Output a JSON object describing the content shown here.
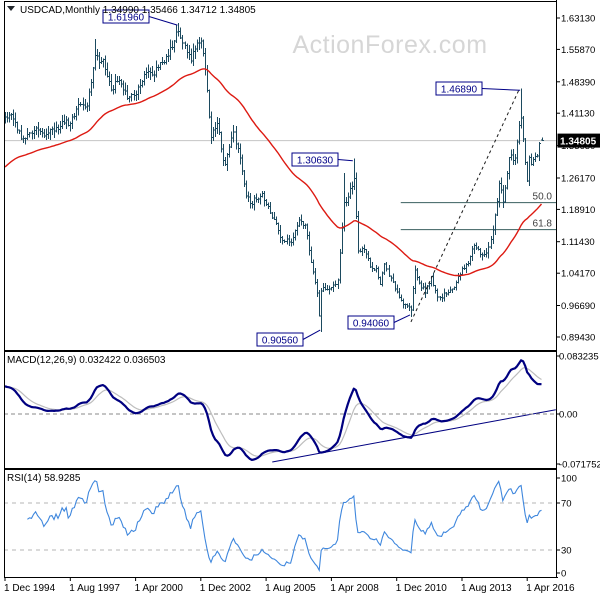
{
  "header": {
    "display": "USDCAD,Monthly 1.34990 1.35466 1.34712 1.34805",
    "symbol_period": "USDCAD,Monthly",
    "open": "1.34990",
    "high": "1.35466",
    "low": "1.34712",
    "close": "1.34805"
  },
  "watermark": "ActionForex.com",
  "panes": {
    "macd": {
      "label": "MACD(12,26,9) 0.032422 0.036503",
      "axis_ticks": [
        {
          "label": "0.083235",
          "value": 0.083235
        },
        {
          "label": "0.00",
          "value": 0
        },
        {
          "label": "-0.071752",
          "value": -0.071752
        }
      ]
    },
    "rsi": {
      "label": "RSI(14) 58.9285",
      "axis_ticks": [
        {
          "label": "100",
          "value": 100
        },
        {
          "label": "70",
          "value": 70
        },
        {
          "label": "30",
          "value": 30
        },
        {
          "label": "0",
          "value": 0
        }
      ],
      "levels": [
        70,
        30
      ]
    }
  },
  "colors": {
    "background": "#ffffff",
    "bars": "#1c4a5f",
    "ma_line": "#dd1a12",
    "watermark_gray": "#d6d6d6",
    "annotation_navy": "#000087",
    "macd_line": "#000080",
    "macd_signal": "#bdbdbd",
    "rsi_line": "#3f87dd",
    "fib_line": "#3a5f5f",
    "axis_text": "#000000",
    "current_price_bg": "#000000",
    "current_price_text": "#ffffff",
    "current_price_line": "#c4c4c4",
    "trendline_black": "#1a1a1a",
    "frame": "#000000",
    "rsi_level_line": "#b5b5b5",
    "macd_zero_line": "#8a8a8a"
  },
  "chart_data": {
    "type": "candlestick",
    "symbol": "USDCAD",
    "timeframe": "Monthly",
    "title": "USDCAD Monthly with 55-month EMA, Fibonacci retracement, MACD and RSI",
    "x_axis": {
      "labels": [
        "1 Dec 1994",
        "1 Aug 1997",
        "1 Apr 2000",
        "1 Dec 2002",
        "1 Aug 2005",
        "1 Apr 2008",
        "1 Dec 2010",
        "1 Aug 2013",
        "1 Apr 2016"
      ],
      "label_months": [
        0,
        32,
        64,
        96,
        128,
        160,
        192,
        224,
        256
      ],
      "month_zero": "Dec 1994",
      "last_month": "Nov 2016"
    },
    "y_axis": {
      "ticks": [
        {
          "label": "1.63130",
          "value": 1.6313
        },
        {
          "label": "1.55870",
          "value": 1.5587
        },
        {
          "label": "1.48390",
          "value": 1.4839
        },
        {
          "label": "1.41130",
          "value": 1.4113
        },
        {
          "label": "1.33650",
          "value": 1.3365
        },
        {
          "label": "1.26170",
          "value": 1.2617
        },
        {
          "label": "1.18910",
          "value": 1.1891
        },
        {
          "label": "1.11430",
          "value": 1.1143
        },
        {
          "label": "1.04170",
          "value": 1.0417
        },
        {
          "label": "0.96690",
          "value": 0.9669
        },
        {
          "label": "0.89430",
          "value": 0.8943
        }
      ],
      "range": [
        0.8943,
        1.6313
      ],
      "current_price": 1.34805,
      "current_price_label": "1.34805"
    },
    "series_anchors_monthly_close": [
      [
        -30,
        1.195
      ],
      [
        -24,
        1.27
      ],
      [
        -18,
        1.283
      ],
      [
        -12,
        1.325
      ],
      [
        -6,
        1.382
      ],
      [
        0,
        1.403
      ],
      [
        3,
        1.408
      ],
      [
        6,
        1.372
      ],
      [
        8,
        1.352
      ],
      [
        12,
        1.365
      ],
      [
        16,
        1.372
      ],
      [
        20,
        1.362
      ],
      [
        24,
        1.37
      ],
      [
        28,
        1.392
      ],
      [
        32,
        1.388
      ],
      [
        36,
        1.432
      ],
      [
        40,
        1.428
      ],
      [
        44,
        1.545
      ],
      [
        46,
        1.528
      ],
      [
        48,
        1.535
      ],
      [
        52,
        1.465
      ],
      [
        56,
        1.487
      ],
      [
        60,
        1.445
      ],
      [
        63,
        1.452
      ],
      [
        66,
        1.475
      ],
      [
        70,
        1.508
      ],
      [
        72,
        1.5
      ],
      [
        76,
        1.528
      ],
      [
        80,
        1.543
      ],
      [
        83,
        1.578
      ],
      [
        85,
        1.6
      ],
      [
        88,
        1.568
      ],
      [
        91,
        1.532
      ],
      [
        94,
        1.573
      ],
      [
        96,
        1.578
      ],
      [
        98,
        1.512
      ],
      [
        101,
        1.355
      ],
      [
        104,
        1.388
      ],
      [
        107,
        1.302
      ],
      [
        108,
        1.293
      ],
      [
        112,
        1.368
      ],
      [
        114,
        1.33
      ],
      [
        118,
        1.22
      ],
      [
        120,
        1.203
      ],
      [
        123,
        1.212
      ],
      [
        126,
        1.226
      ],
      [
        130,
        1.181
      ],
      [
        132,
        1.166
      ],
      [
        136,
        1.117
      ],
      [
        140,
        1.112
      ],
      [
        144,
        1.164
      ],
      [
        147,
        1.153
      ],
      [
        150,
        1.066
      ],
      [
        153,
        0.996
      ],
      [
        154,
        0.943
      ],
      [
        155,
        1.0
      ],
      [
        157,
        1.004
      ],
      [
        160,
        1.008
      ],
      [
        163,
        1.026
      ],
      [
        166,
        1.205
      ],
      [
        168,
        1.218
      ],
      [
        171,
        1.261
      ],
      [
        173,
        1.093
      ],
      [
        176,
        1.096
      ],
      [
        179,
        1.056
      ],
      [
        182,
        1.052
      ],
      [
        184,
        1.016
      ],
      [
        186,
        1.063
      ],
      [
        189,
        1.03
      ],
      [
        192,
        0.998
      ],
      [
        195,
        0.969
      ],
      [
        198,
        0.963
      ],
      [
        199,
        0.956
      ],
      [
        201,
        1.049
      ],
      [
        203,
        1.019
      ],
      [
        206,
        0.996
      ],
      [
        209,
        1.034
      ],
      [
        212,
        0.987
      ],
      [
        216,
        0.994
      ],
      [
        220,
        1.008
      ],
      [
        224,
        1.052
      ],
      [
        227,
        1.064
      ],
      [
        230,
        1.106
      ],
      [
        233,
        1.085
      ],
      [
        236,
        1.088
      ],
      [
        239,
        1.141
      ],
      [
        242,
        1.249
      ],
      [
        244,
        1.206
      ],
      [
        247,
        1.309
      ],
      [
        250,
        1.308
      ],
      [
        252,
        1.383
      ],
      [
        253,
        1.4
      ],
      [
        254,
        1.352
      ],
      [
        255,
        1.297
      ],
      [
        256,
        1.255
      ],
      [
        257,
        1.309
      ],
      [
        258,
        1.293
      ],
      [
        259,
        1.304
      ],
      [
        260,
        1.311
      ],
      [
        261,
        1.312
      ],
      [
        262,
        1.341
      ],
      [
        263,
        1.34805
      ]
    ],
    "bar_overrides": {
      "44": {
        "h": 1.583
      },
      "85": {
        "h": 1.6196
      },
      "155": {
        "l": 0.9056
      },
      "166": {
        "h": 1.273
      },
      "171": {
        "h": 1.3063
      },
      "199": {
        "l": 0.9406
      },
      "253": {
        "h": 1.4689
      },
      "263": {
        "o": 1.3499,
        "h": 1.35466,
        "l": 1.34712,
        "c": 1.34805
      }
    },
    "overlays": {
      "ma_type": "EMA",
      "ma_period": 55
    },
    "annotations": [
      {
        "text": "1.61960",
        "month": 85,
        "price": 1.6196,
        "side": "high",
        "box": [
          103,
          10
        ]
      },
      {
        "text": "1.46890",
        "month": 253,
        "price": 1.4689,
        "side": "high",
        "box": [
          436,
          82
        ]
      },
      {
        "text": "1.30630",
        "month": 171,
        "price": 1.3063,
        "side": "high",
        "box": [
          292,
          153
        ]
      },
      {
        "text": "0.94060",
        "month": 199,
        "price": 0.9406,
        "side": "low",
        "box": [
          348,
          316
        ]
      },
      {
        "text": "0.90560",
        "month": 155,
        "price": 0.9056,
        "side": "low",
        "box": [
          257,
          333
        ]
      }
    ],
    "fib_levels": [
      {
        "label": "50.0",
        "price": 1.2048
      },
      {
        "label": "61.8",
        "price": 1.1424
      }
    ],
    "fib_start_month": 194,
    "trendlines": {
      "main_dashed": {
        "from": {
          "month": 199,
          "price": 0.929
        },
        "to": {
          "month": 252.2,
          "price": 1.468
        }
      },
      "macd": {
        "from": {
          "month": 131,
          "value": -0.0689
        },
        "to": {
          "month": 270,
          "value": 0.0062
        }
      }
    },
    "macd": {
      "fast": 12,
      "slow": 26,
      "signal": 9,
      "current_macd": 0.032422,
      "current_signal": 0.036503,
      "range": [
        -0.071752,
        0.083235
      ]
    },
    "rsi": {
      "period": 14,
      "current": 58.9285,
      "range": [
        0,
        100
      ]
    }
  }
}
